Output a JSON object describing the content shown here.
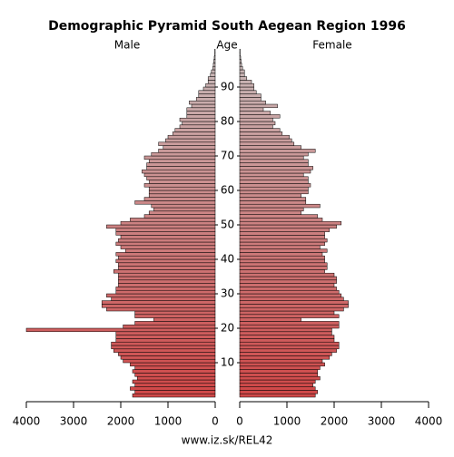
{
  "chart_data": {
    "type": "pyramid",
    "title": "Demographic Pyramid South Aegean Region 1996",
    "left_label": "Male",
    "center_label": "Age",
    "right_label": "Female",
    "footer": "www.iz.sk/REL42",
    "ages": [
      0,
      1,
      2,
      3,
      4,
      5,
      6,
      7,
      8,
      9,
      10,
      11,
      12,
      13,
      14,
      15,
      16,
      17,
      18,
      19,
      20,
      21,
      22,
      23,
      24,
      25,
      26,
      27,
      28,
      29,
      30,
      31,
      32,
      33,
      34,
      35,
      36,
      37,
      38,
      39,
      40,
      41,
      42,
      43,
      44,
      45,
      46,
      47,
      48,
      49,
      50,
      51,
      52,
      53,
      54,
      55,
      56,
      57,
      58,
      59,
      60,
      61,
      62,
      63,
      64,
      65,
      66,
      67,
      68,
      69,
      70,
      71,
      72,
      73,
      74,
      75,
      76,
      77,
      78,
      79,
      80,
      81,
      82,
      83,
      84,
      85,
      86,
      87,
      88,
      89,
      90,
      91,
      92,
      93,
      94,
      95,
      96,
      97,
      98,
      99,
      100
    ],
    "series": [
      {
        "name": "Male",
        "values": [
          1750,
          1700,
          1800,
          1700,
          1750,
          1650,
          1700,
          1750,
          1700,
          1800,
          1950,
          2000,
          2050,
          2150,
          2200,
          2200,
          2100,
          2100,
          2100,
          4000,
          1950,
          1700,
          1300,
          1700,
          1700,
          2300,
          2400,
          2400,
          2200,
          2300,
          2100,
          2100,
          2050,
          2050,
          2050,
          2050,
          2150,
          2050,
          2050,
          2100,
          2050,
          2100,
          1900,
          2000,
          2100,
          2050,
          2000,
          2100,
          2100,
          2300,
          2000,
          1800,
          1500,
          1400,
          1300,
          1350,
          1700,
          1500,
          1400,
          1400,
          1400,
          1500,
          1400,
          1450,
          1500,
          1550,
          1450,
          1450,
          1400,
          1500,
          1350,
          1200,
          1100,
          1200,
          1050,
          1000,
          900,
          850,
          750,
          700,
          750,
          600,
          600,
          600,
          500,
          550,
          400,
          350,
          350,
          250,
          200,
          150,
          150,
          100,
          80,
          50,
          40,
          30,
          20,
          10,
          10
        ]
      },
      {
        "name": "Female",
        "values": [
          1600,
          1650,
          1600,
          1550,
          1600,
          1700,
          1650,
          1650,
          1700,
          1800,
          1750,
          1900,
          1950,
          2050,
          2100,
          2100,
          2000,
          2000,
          1950,
          1950,
          2100,
          2100,
          1300,
          2100,
          2000,
          2200,
          2300,
          2300,
          2200,
          2150,
          2100,
          2050,
          2000,
          2050,
          2050,
          2000,
          1800,
          1850,
          1850,
          1800,
          1800,
          1750,
          1850,
          1700,
          1800,
          1850,
          1800,
          1800,
          1900,
          2050,
          2150,
          1750,
          1650,
          1300,
          1350,
          1700,
          1400,
          1400,
          1300,
          1450,
          1450,
          1500,
          1450,
          1450,
          1350,
          1500,
          1550,
          1450,
          1450,
          1350,
          1450,
          1600,
          1300,
          1150,
          1100,
          1050,
          900,
          850,
          700,
          750,
          700,
          850,
          650,
          500,
          800,
          550,
          450,
          450,
          350,
          300,
          300,
          250,
          150,
          100,
          100,
          60,
          40,
          30,
          20,
          10,
          10
        ]
      }
    ],
    "gradient": [
      "#d04848",
      "#c8bcbc"
    ],
    "xlim": [
      0,
      4000
    ],
    "xticks": [
      0,
      1000,
      2000,
      3000,
      4000
    ],
    "ylim": [
      0,
      100
    ],
    "yticks": [
      10,
      20,
      30,
      40,
      50,
      60,
      70,
      80,
      90
    ]
  }
}
